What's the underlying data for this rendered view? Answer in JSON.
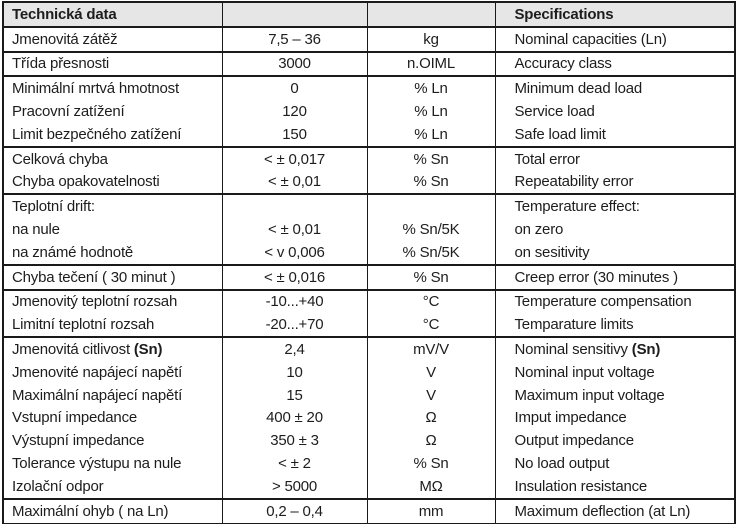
{
  "table": {
    "header": {
      "czech_title": "Technická data",
      "english_title": "Specifications"
    },
    "style": {
      "header_bg": "#e6e6e6",
      "border_color": "#1a1a1a",
      "text_color": "#1d1d1d"
    },
    "rows": [
      {
        "cz": "Jmenovitá zátěž",
        "val": "7,5 – 36",
        "unit": "kg",
        "en": "Nominal capacities (Ln)",
        "sep": true
      },
      {
        "cz": "Třída přesnosti",
        "val": "3000",
        "unit": "n.OIML",
        "en": "Accuracy class",
        "sep": true
      },
      {
        "cz": "Minimální mrtvá hmotnost",
        "val": "0",
        "unit": "% Ln",
        "en": "Minimum dead load",
        "sep": true
      },
      {
        "cz": "Pracovní zatížení",
        "val": "120",
        "unit": "% Ln",
        "en": "Service load",
        "sep": false
      },
      {
        "cz": "Limit bezpečného zatížení",
        "val": "150",
        "unit": "% Ln",
        "en": "Safe load limit",
        "sep": false
      },
      {
        "cz": "Celková chyba",
        "val": "< ± 0,017",
        "unit": "% Sn",
        "en": "Total error",
        "sep": true
      },
      {
        "cz": "Chyba opakovatelnosti",
        "val": "< ± 0,01",
        "unit": "% Sn",
        "en": "Repeatability error",
        "sep": false
      },
      {
        "cz": "Teplotní drift:",
        "val": "",
        "unit": "",
        "en": "Temperature effect:",
        "sep": true
      },
      {
        "cz": "na nule",
        "val": "< ± 0,01",
        "unit": "% Sn/5K",
        "en": "on zero",
        "sep": false
      },
      {
        "cz": "na známé hodnotě",
        "val": "< v 0,006",
        "unit": "% Sn/5K",
        "en": "on sesitivity",
        "sep": false
      },
      {
        "cz": "Chyba tečení ( 30 minut )",
        "val": "< ± 0,016",
        "unit": "% Sn",
        "en": "Creep error (30 minutes )",
        "sep": true
      },
      {
        "cz": "Jmenovitý teplotní rozsah",
        "val": "-10...+40",
        "unit": "°C",
        "en": "Temperature compensation",
        "sep": true
      },
      {
        "cz": "Limitní teplotní rozsah",
        "val": "-20...+70",
        "unit": "°C",
        "en": "Temparature limits",
        "sep": false
      },
      {
        "cz": "Jmenovitá citlivost ",
        "cz_bold": "(Sn)",
        "val": "2,4",
        "unit": "mV/V",
        "en": "Nominal sensitivy ",
        "en_bold": "(Sn)",
        "sep": true
      },
      {
        "cz": "Jmenovité napájecí napětí",
        "val": "10",
        "unit": "V",
        "en": "Nominal input voltage",
        "sep": false
      },
      {
        "cz": "Maximální napájecí napětí",
        "val": "15",
        "unit": "V",
        "en": "Maximum input voltage",
        "sep": false
      },
      {
        "cz": "Vstupní impedance",
        "val": "400 ± 20",
        "unit": "Ω",
        "en": "Imput impedance",
        "sep": false
      },
      {
        "cz": "Výstupní impedance",
        "val": "350 ± 3",
        "unit": "Ω",
        "en": "Output impedance",
        "sep": false
      },
      {
        "cz": "Tolerance výstupu na nule",
        "val": "< ± 2",
        "unit": "% Sn",
        "en": "No load output",
        "sep": false
      },
      {
        "cz": "Izolační odpor",
        "val": "> 5000",
        "unit": "MΩ",
        "en": "Insulation resistance",
        "sep": false
      },
      {
        "cz": "Maximální ohyb ( na Ln)",
        "val": "0,2 – 0,4",
        "unit": "mm",
        "en": "Maximum deflection (at Ln)",
        "sep": true
      }
    ]
  }
}
